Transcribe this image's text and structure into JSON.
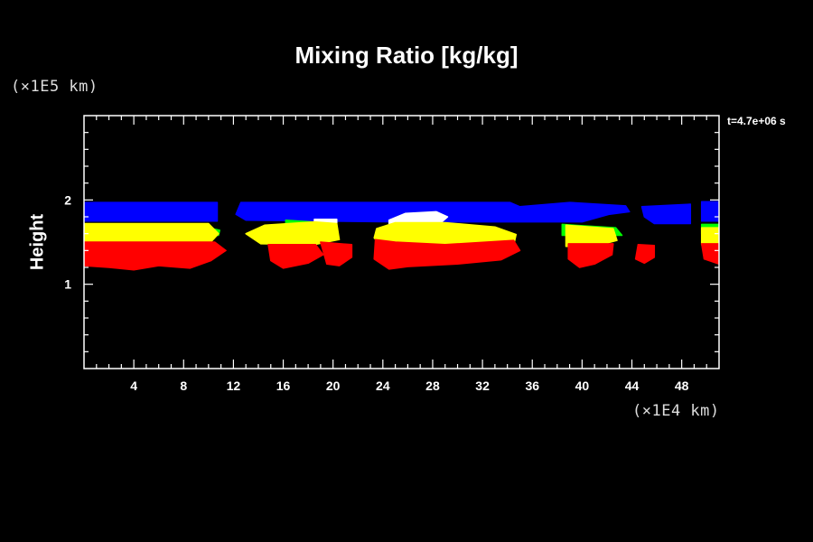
{
  "chart_data": {
    "type": "heatmap",
    "title": "Mixing Ratio [kg/kg]",
    "ylabel": "Height",
    "xlabel": "",
    "x_unit": "(×1E4 km)",
    "y_unit": "(×1E5 km)",
    "time_label": "t=4.7e+06 s",
    "xlim": [
      0,
      51
    ],
    "ylim": [
      0,
      3
    ],
    "x_ticks": [
      4,
      8,
      12,
      16,
      20,
      24,
      28,
      32,
      36,
      40,
      44,
      48
    ],
    "y_ticks": [
      1,
      2
    ],
    "colors": {
      "blue": "#0000ff",
      "white": "#ffffff",
      "green": "#00ff00",
      "yellow": "#ffff00",
      "red": "#ff0000",
      "background": "#000000",
      "frame": "#ffffff"
    },
    "blobs": [
      {
        "color": "blue",
        "points": [
          [
            0,
            1.97
          ],
          [
            10.7,
            1.97
          ],
          [
            10.7,
            1.75
          ],
          [
            0,
            1.75
          ]
        ]
      },
      {
        "color": "blue",
        "points": [
          [
            12.6,
            1.97
          ],
          [
            34.2,
            1.97
          ],
          [
            35,
            1.92
          ],
          [
            39,
            1.97
          ],
          [
            43.5,
            1.93
          ],
          [
            43.8,
            1.86
          ],
          [
            42.2,
            1.83
          ],
          [
            40,
            1.74
          ],
          [
            25,
            1.74
          ],
          [
            13,
            1.76
          ],
          [
            12.2,
            1.83
          ]
        ]
      },
      {
        "color": "blue",
        "points": [
          [
            44.8,
            1.92
          ],
          [
            48.7,
            1.95
          ],
          [
            48.7,
            1.72
          ],
          [
            45.8,
            1.72
          ],
          [
            45,
            1.8
          ]
        ]
      },
      {
        "color": "blue",
        "points": [
          [
            49.6,
            1.98
          ],
          [
            51,
            1.98
          ],
          [
            51,
            1.75
          ],
          [
            49.6,
            1.75
          ]
        ]
      },
      {
        "color": "white",
        "points": [
          [
            24.5,
            1.76
          ],
          [
            25.8,
            1.84
          ],
          [
            28.3,
            1.86
          ],
          [
            29.2,
            1.8
          ],
          [
            28.5,
            1.71
          ],
          [
            24.5,
            1.71
          ]
        ]
      },
      {
        "color": "white",
        "points": [
          [
            18.5,
            1.77
          ],
          [
            20.3,
            1.77
          ],
          [
            20.3,
            1.72
          ],
          [
            18.5,
            1.72
          ]
        ]
      },
      {
        "color": "green",
        "points": [
          [
            9,
            1.7
          ],
          [
            10.9,
            1.64
          ],
          [
            10.8,
            1.58
          ],
          [
            9,
            1.58
          ]
        ]
      },
      {
        "color": "green",
        "points": [
          [
            38.4,
            1.71
          ],
          [
            42.7,
            1.67
          ],
          [
            43.2,
            1.58
          ],
          [
            38.4,
            1.58
          ]
        ]
      },
      {
        "color": "green",
        "points": [
          [
            49.6,
            1.71
          ],
          [
            51,
            1.71
          ],
          [
            51,
            1.6
          ],
          [
            49.6,
            1.6
          ]
        ]
      },
      {
        "color": "green",
        "points": [
          [
            16.2,
            1.76
          ],
          [
            18.3,
            1.74
          ],
          [
            18.3,
            1.69
          ],
          [
            16.2,
            1.69
          ]
        ]
      },
      {
        "color": "yellow",
        "points": [
          [
            0,
            1.72
          ],
          [
            10,
            1.72
          ],
          [
            10.8,
            1.6
          ],
          [
            9.8,
            1.44
          ],
          [
            0,
            1.47
          ]
        ]
      },
      {
        "color": "yellow",
        "points": [
          [
            13,
            1.6
          ],
          [
            14.5,
            1.7
          ],
          [
            18.5,
            1.74
          ],
          [
            20.3,
            1.72
          ],
          [
            20.5,
            1.53
          ],
          [
            18.5,
            1.47
          ],
          [
            14.2,
            1.48
          ]
        ]
      },
      {
        "color": "yellow",
        "points": [
          [
            23.5,
            1.66
          ],
          [
            25,
            1.73
          ],
          [
            29,
            1.73
          ],
          [
            33,
            1.68
          ],
          [
            34.7,
            1.59
          ],
          [
            34.5,
            1.46
          ],
          [
            29,
            1.42
          ],
          [
            24,
            1.43
          ],
          [
            23.3,
            1.55
          ]
        ]
      },
      {
        "color": "yellow",
        "points": [
          [
            38.7,
            1.7
          ],
          [
            42.5,
            1.66
          ],
          [
            42.8,
            1.52
          ],
          [
            41,
            1.45
          ],
          [
            38.7,
            1.45
          ]
        ]
      },
      {
        "color": "yellow",
        "points": [
          [
            49.6,
            1.67
          ],
          [
            51,
            1.67
          ],
          [
            51,
            1.47
          ],
          [
            49.6,
            1.47
          ]
        ]
      },
      {
        "color": "red",
        "points": [
          [
            0,
            1.5
          ],
          [
            10.5,
            1.5
          ],
          [
            11.4,
            1.4
          ],
          [
            10.2,
            1.28
          ],
          [
            8.5,
            1.19
          ],
          [
            6,
            1.22
          ],
          [
            4,
            1.17
          ],
          [
            2,
            1.2
          ],
          [
            0,
            1.22
          ]
        ]
      },
      {
        "color": "red",
        "points": [
          [
            14.8,
            1.47
          ],
          [
            18.6,
            1.47
          ],
          [
            19.2,
            1.35
          ],
          [
            18,
            1.25
          ],
          [
            16,
            1.19
          ],
          [
            15,
            1.28
          ]
        ]
      },
      {
        "color": "red",
        "points": [
          [
            19,
            1.5
          ],
          [
            21.5,
            1.47
          ],
          [
            21.5,
            1.32
          ],
          [
            20.5,
            1.22
          ],
          [
            19.5,
            1.24
          ]
        ]
      },
      {
        "color": "red",
        "points": [
          [
            23.4,
            1.53
          ],
          [
            25,
            1.5
          ],
          [
            29,
            1.47
          ],
          [
            34.5,
            1.52
          ],
          [
            35,
            1.4
          ],
          [
            33.5,
            1.29
          ],
          [
            30,
            1.24
          ],
          [
            26,
            1.21
          ],
          [
            24.5,
            1.18
          ],
          [
            23.3,
            1.3
          ]
        ]
      },
      {
        "color": "red",
        "points": [
          [
            38.9,
            1.48
          ],
          [
            42.5,
            1.48
          ],
          [
            42.4,
            1.35
          ],
          [
            41,
            1.24
          ],
          [
            39.8,
            1.2
          ],
          [
            38.9,
            1.3
          ]
        ]
      },
      {
        "color": "red",
        "points": [
          [
            44.5,
            1.47
          ],
          [
            45.8,
            1.46
          ],
          [
            45.8,
            1.32
          ],
          [
            45,
            1.25
          ],
          [
            44.3,
            1.3
          ]
        ]
      },
      {
        "color": "red",
        "points": [
          [
            49.6,
            1.48
          ],
          [
            51,
            1.48
          ],
          [
            51,
            1.24
          ],
          [
            49.8,
            1.3
          ]
        ]
      }
    ]
  }
}
